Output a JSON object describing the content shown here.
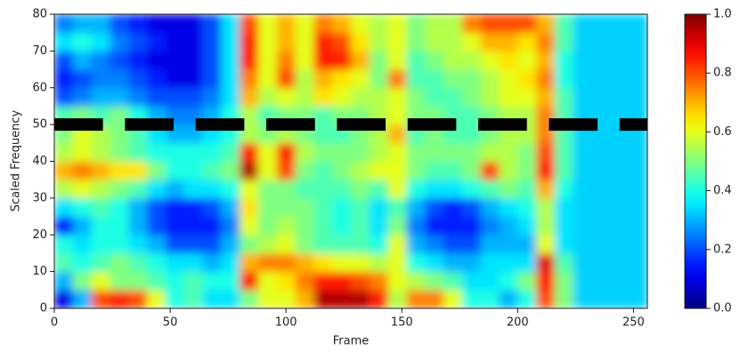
{
  "chart_data": {
    "type": "heatmap",
    "xlabel": "Frame",
    "ylabel": "Scaled Frequency",
    "xlim": [
      0,
      256
    ],
    "ylim": [
      0,
      80
    ],
    "xticks": [
      0,
      50,
      100,
      150,
      200,
      250
    ],
    "yticks": [
      0,
      10,
      20,
      30,
      40,
      50,
      60,
      70,
      80
    ],
    "colormap": "jet",
    "z": [
      [
        0.1,
        0.3,
        0.8,
        0.85,
        0.8,
        0.6,
        0.4,
        0.45,
        0.35,
        0.35,
        0.5,
        0.6,
        0.6,
        0.7,
        0.95,
        0.95,
        0.95,
        0.85,
        0.55,
        0.75,
        0.75,
        0.6,
        0.4,
        0.4,
        0.3,
        0.4,
        0.8,
        0.5,
        0.33,
        0.33,
        0.33,
        0.33
      ],
      [
        0.3,
        0.5,
        0.6,
        0.5,
        0.5,
        0.45,
        0.4,
        0.45,
        0.4,
        0.4,
        0.85,
        0.6,
        0.65,
        0.75,
        0.85,
        0.85,
        0.8,
        0.75,
        0.6,
        0.55,
        0.5,
        0.45,
        0.35,
        0.35,
        0.4,
        0.5,
        0.85,
        0.5,
        0.33,
        0.33,
        0.33,
        0.33
      ],
      [
        0.45,
        0.4,
        0.45,
        0.5,
        0.45,
        0.4,
        0.35,
        0.35,
        0.3,
        0.35,
        0.7,
        0.75,
        0.75,
        0.7,
        0.65,
        0.6,
        0.6,
        0.55,
        0.6,
        0.4,
        0.35,
        0.3,
        0.3,
        0.35,
        0.35,
        0.35,
        0.9,
        0.45,
        0.33,
        0.33,
        0.33,
        0.33
      ],
      [
        0.4,
        0.35,
        0.4,
        0.4,
        0.35,
        0.3,
        0.2,
        0.2,
        0.2,
        0.3,
        0.5,
        0.55,
        0.6,
        0.5,
        0.45,
        0.45,
        0.45,
        0.4,
        0.6,
        0.3,
        0.25,
        0.2,
        0.2,
        0.3,
        0.3,
        0.3,
        0.6,
        0.35,
        0.33,
        0.33,
        0.33,
        0.33
      ],
      [
        0.15,
        0.3,
        0.4,
        0.4,
        0.3,
        0.2,
        0.15,
        0.15,
        0.15,
        0.25,
        0.6,
        0.5,
        0.55,
        0.5,
        0.45,
        0.4,
        0.45,
        0.35,
        0.5,
        0.25,
        0.15,
        0.15,
        0.15,
        0.25,
        0.3,
        0.35,
        0.55,
        0.35,
        0.33,
        0.33,
        0.33,
        0.33
      ],
      [
        0.35,
        0.4,
        0.45,
        0.4,
        0.3,
        0.2,
        0.15,
        0.15,
        0.2,
        0.3,
        0.65,
        0.5,
        0.5,
        0.5,
        0.45,
        0.4,
        0.45,
        0.35,
        0.45,
        0.3,
        0.2,
        0.15,
        0.2,
        0.3,
        0.35,
        0.4,
        0.55,
        0.35,
        0.33,
        0.33,
        0.33,
        0.33
      ],
      [
        0.55,
        0.6,
        0.55,
        0.5,
        0.45,
        0.35,
        0.3,
        0.35,
        0.35,
        0.4,
        0.6,
        0.5,
        0.5,
        0.45,
        0.45,
        0.45,
        0.5,
        0.45,
        0.6,
        0.4,
        0.35,
        0.35,
        0.4,
        0.45,
        0.5,
        0.45,
        0.7,
        0.4,
        0.33,
        0.33,
        0.33,
        0.33
      ],
      [
        0.7,
        0.75,
        0.7,
        0.65,
        0.65,
        0.5,
        0.4,
        0.4,
        0.45,
        0.5,
        0.95,
        0.6,
        0.8,
        0.5,
        0.45,
        0.5,
        0.55,
        0.6,
        0.6,
        0.5,
        0.45,
        0.45,
        0.5,
        0.8,
        0.55,
        0.5,
        0.85,
        0.45,
        0.33,
        0.33,
        0.33,
        0.33
      ],
      [
        0.55,
        0.6,
        0.55,
        0.5,
        0.45,
        0.4,
        0.4,
        0.4,
        0.4,
        0.45,
        0.85,
        0.6,
        0.85,
        0.55,
        0.5,
        0.5,
        0.5,
        0.55,
        0.6,
        0.5,
        0.5,
        0.5,
        0.5,
        0.55,
        0.55,
        0.5,
        0.8,
        0.45,
        0.33,
        0.33,
        0.33,
        0.33
      ],
      [
        0.5,
        0.6,
        0.55,
        0.5,
        0.45,
        0.35,
        0.3,
        0.3,
        0.35,
        0.4,
        0.55,
        0.5,
        0.55,
        0.5,
        0.45,
        0.45,
        0.5,
        0.55,
        0.7,
        0.45,
        0.5,
        0.45,
        0.45,
        0.5,
        0.55,
        0.55,
        0.75,
        0.45,
        0.33,
        0.33,
        0.33,
        0.33
      ],
      [
        0.45,
        0.5,
        0.45,
        0.5,
        0.4,
        0.3,
        0.25,
        0.25,
        0.3,
        0.4,
        0.55,
        0.45,
        0.5,
        0.5,
        0.45,
        0.5,
        0.5,
        0.55,
        0.6,
        0.5,
        0.5,
        0.45,
        0.45,
        0.5,
        0.55,
        0.55,
        0.75,
        0.45,
        0.33,
        0.33,
        0.33,
        0.33
      ],
      [
        0.2,
        0.25,
        0.3,
        0.3,
        0.25,
        0.2,
        0.2,
        0.2,
        0.25,
        0.35,
        0.7,
        0.55,
        0.6,
        0.55,
        0.65,
        0.6,
        0.55,
        0.55,
        0.6,
        0.5,
        0.45,
        0.45,
        0.5,
        0.55,
        0.6,
        0.6,
        0.7,
        0.45,
        0.33,
        0.33,
        0.33,
        0.33
      ],
      [
        0.15,
        0.2,
        0.25,
        0.25,
        0.2,
        0.15,
        0.1,
        0.1,
        0.2,
        0.35,
        0.75,
        0.6,
        0.8,
        0.55,
        0.7,
        0.65,
        0.6,
        0.5,
        0.75,
        0.45,
        0.45,
        0.5,
        0.5,
        0.55,
        0.6,
        0.65,
        0.75,
        0.4,
        0.33,
        0.33,
        0.33,
        0.33
      ],
      [
        0.2,
        0.3,
        0.25,
        0.2,
        0.15,
        0.1,
        0.1,
        0.1,
        0.2,
        0.35,
        0.85,
        0.6,
        0.75,
        0.6,
        0.85,
        0.85,
        0.7,
        0.5,
        0.6,
        0.45,
        0.5,
        0.55,
        0.55,
        0.6,
        0.65,
        0.6,
        0.7,
        0.4,
        0.33,
        0.33,
        0.33,
        0.33
      ],
      [
        0.35,
        0.4,
        0.35,
        0.25,
        0.2,
        0.15,
        0.1,
        0.1,
        0.2,
        0.35,
        0.85,
        0.6,
        0.7,
        0.6,
        0.85,
        0.8,
        0.65,
        0.55,
        0.6,
        0.5,
        0.55,
        0.55,
        0.6,
        0.7,
        0.7,
        0.65,
        0.75,
        0.45,
        0.33,
        0.33,
        0.33,
        0.33
      ],
      [
        0.25,
        0.3,
        0.3,
        0.2,
        0.15,
        0.1,
        0.1,
        0.1,
        0.2,
        0.35,
        0.8,
        0.6,
        0.7,
        0.6,
        0.75,
        0.7,
        0.6,
        0.55,
        0.6,
        0.5,
        0.55,
        0.55,
        0.75,
        0.8,
        0.8,
        0.8,
        0.7,
        0.45,
        0.33,
        0.33,
        0.33,
        0.33
      ]
    ],
    "hline": {
      "y": 50,
      "color": "#000000",
      "style": "dashed"
    },
    "colorbar": {
      "lim": [
        0,
        1
      ],
      "ticks": [
        {
          "value": 0,
          "label": "0.0"
        },
        0.2,
        0.4,
        0.6,
        0.8,
        {
          "value": 1,
          "label": "1.0"
        }
      ]
    }
  }
}
